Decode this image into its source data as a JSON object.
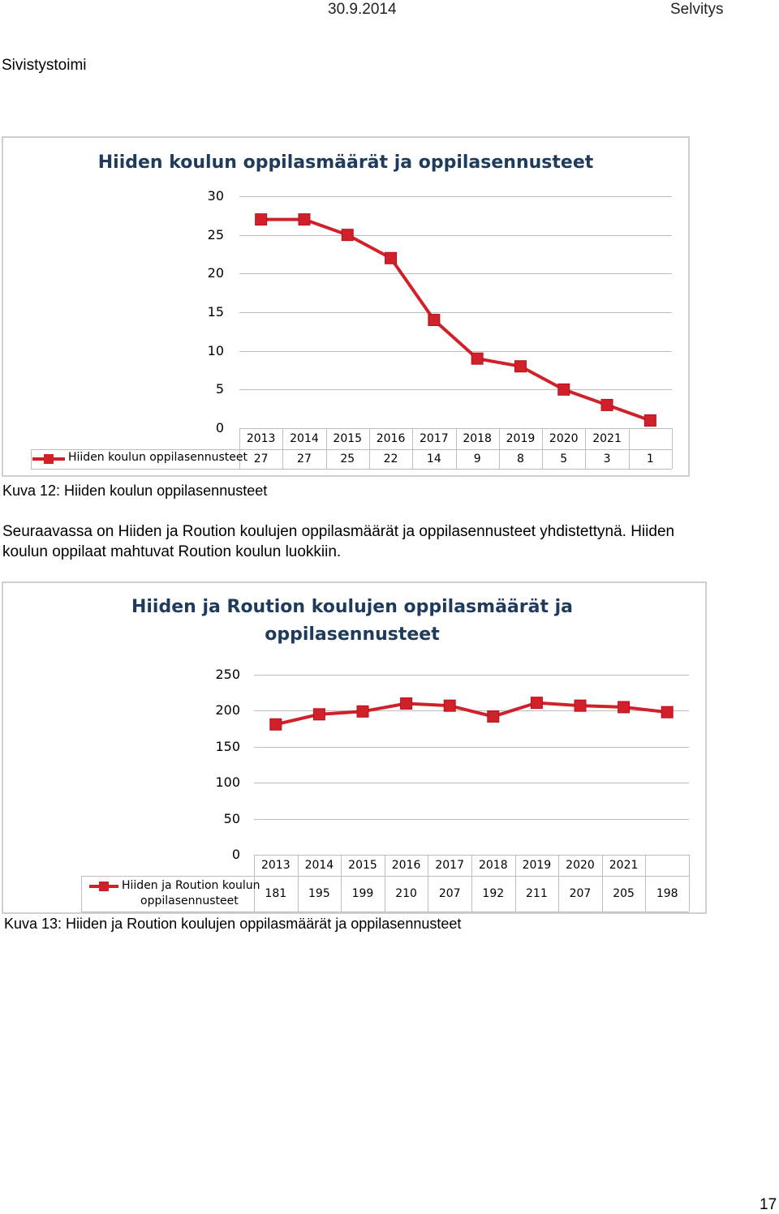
{
  "header": {
    "date": "30.9.2014",
    "doc_type": "Selvitys",
    "department": "Sivistystoimi"
  },
  "chart1": {
    "title": "Hiiden koulun oppilasmäärät ja oppilasennusteet",
    "caption": "Kuva 12: Hiiden koulun oppilasennusteet"
  },
  "paragraph": {
    "line1": "Seuraavassa on Hiiden ja Roution koulujen oppilasmäärät ja oppilasennusteet yhdistettynä. Hiiden",
    "line2": "koulun oppilaat mahtuvat Roution koulun luokkiin."
  },
  "chart2": {
    "title_line1": "Hiiden ja Roution koulujen oppilasmäärät ja",
    "title_line2": "oppilasennusteet",
    "legend_line1": "Hiiden ja Roution koulun",
    "legend_line2": "oppilasennusteet",
    "caption": "Kuva 13: Hiiden ja Roution koulujen oppilasmäärät ja oppilasennusteet"
  },
  "footer": {
    "page_number": "17"
  },
  "chart_data": [
    {
      "type": "line",
      "title": "Hiiden koulun oppilasmäärät ja oppilasennusteet",
      "categories": [
        "2013",
        "2014",
        "2015",
        "2016",
        "2017",
        "2018",
        "2019",
        "2020",
        "2021",
        ""
      ],
      "series": [
        {
          "name": "Hiiden koulun oppilasennusteet",
          "values": [
            27,
            27,
            25,
            22,
            14,
            9,
            8,
            5,
            3,
            1
          ],
          "color": "#d0202a"
        }
      ],
      "yticks": [
        "0",
        "5",
        "10",
        "15",
        "20",
        "25",
        "30"
      ],
      "ylim": [
        0,
        30
      ],
      "grid": true,
      "data_table": true
    },
    {
      "type": "line",
      "title": "Hiiden ja Roution koulujen oppilasmäärät ja oppilasennusteet",
      "categories": [
        "2013",
        "2014",
        "2015",
        "2016",
        "2017",
        "2018",
        "2019",
        "2020",
        "2021",
        ""
      ],
      "series": [
        {
          "name": "Hiiden ja Roution koulun oppilasennusteet",
          "values": [
            181,
            195,
            199,
            210,
            207,
            192,
            211,
            207,
            205,
            198
          ],
          "color": "#d0202a"
        }
      ],
      "yticks": [
        "0",
        "50",
        "100",
        "150",
        "200",
        "250"
      ],
      "ylim": [
        0,
        250
      ],
      "grid": true,
      "data_table": true
    }
  ]
}
